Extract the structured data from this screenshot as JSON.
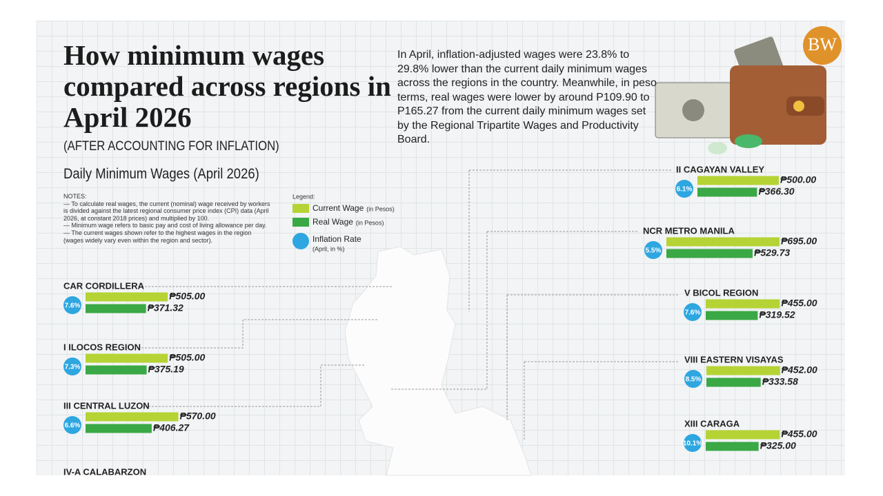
{
  "header": {
    "title": "How minimum wages compared across regions in April 2026",
    "subtitle": "(AFTER ACCOUNTING FOR INFLATION)",
    "intro": "In April, inflation-adjusted wages were 23.8% to 29.8% lower than the current daily minimum wages across the regions in the country. Meanwhile, in peso terms, real wages were lower by around P109.90 to P165.27 from the current daily minimum wages set by the Regional Tripartite Wages and Productivity Board.",
    "logo": "BW"
  },
  "notes": {
    "heading": "NOTES:",
    "items": [
      "— To calculate real wages, the current (nominal) wage received by workers is divided against the latest regional consumer price index (CPI) data (April 2026, at constant 2018 prices) and multiplied by 100.",
      "— Minimum wage refers to basic pay and cost of living allowance per day.",
      "— The current wages shown refer to the highest wages in the region (wages widely vary even within the region and sector)."
    ]
  },
  "chart_data": {
    "type": "bar",
    "orientation": "horizontal",
    "title": "Daily Minimum Wages (April 2026)",
    "legend_title": "Legend:",
    "categories": [
      "CAR CORDILLERA",
      "I ILOCOS REGION",
      "III CENTRAL LUZON",
      "IV-A CALABARZON",
      "II CAGAYAN VALLEY",
      "NCR METRO MANILA",
      "V BICOL REGION",
      "VIII EASTERN VISAYAS",
      "XIII CARAGA"
    ],
    "series": [
      {
        "name": "Current Wage",
        "unit": "(in Pesos)",
        "color": "#b5d334",
        "values": [
          505,
          505,
          570,
          null,
          500,
          695,
          455,
          452,
          455
        ],
        "value_labels": [
          "₱505.00",
          "₱505.00",
          "₱570.00",
          null,
          "₱500.00",
          "₱695.00",
          "₱455.00",
          "₱452.00",
          "₱455.00"
        ]
      },
      {
        "name": "Real Wage",
        "unit": "(in Pesos)",
        "color": "#3aa845",
        "values": [
          371.32,
          375.19,
          406.27,
          null,
          366.3,
          529.73,
          319.52,
          333.58,
          325
        ],
        "value_labels": [
          "₱371.32",
          "₱375.19",
          "₱406.27",
          null,
          "₱366.30",
          "₱529.73",
          "₱319.52",
          "₱333.58",
          "₱325.00"
        ]
      },
      {
        "name": "Inflation Rate",
        "unit": "(April, in %)",
        "color": "#2ea6e0",
        "values": [
          7.6,
          7.3,
          6.6,
          null,
          6.1,
          5.5,
          7.6,
          8.5,
          10.1
        ],
        "value_labels": [
          "7.6%",
          "7.3%",
          "6.6%",
          null,
          "6.1%",
          "5.5%",
          "7.6%",
          "8.5%",
          "10.1%"
        ]
      }
    ]
  }
}
